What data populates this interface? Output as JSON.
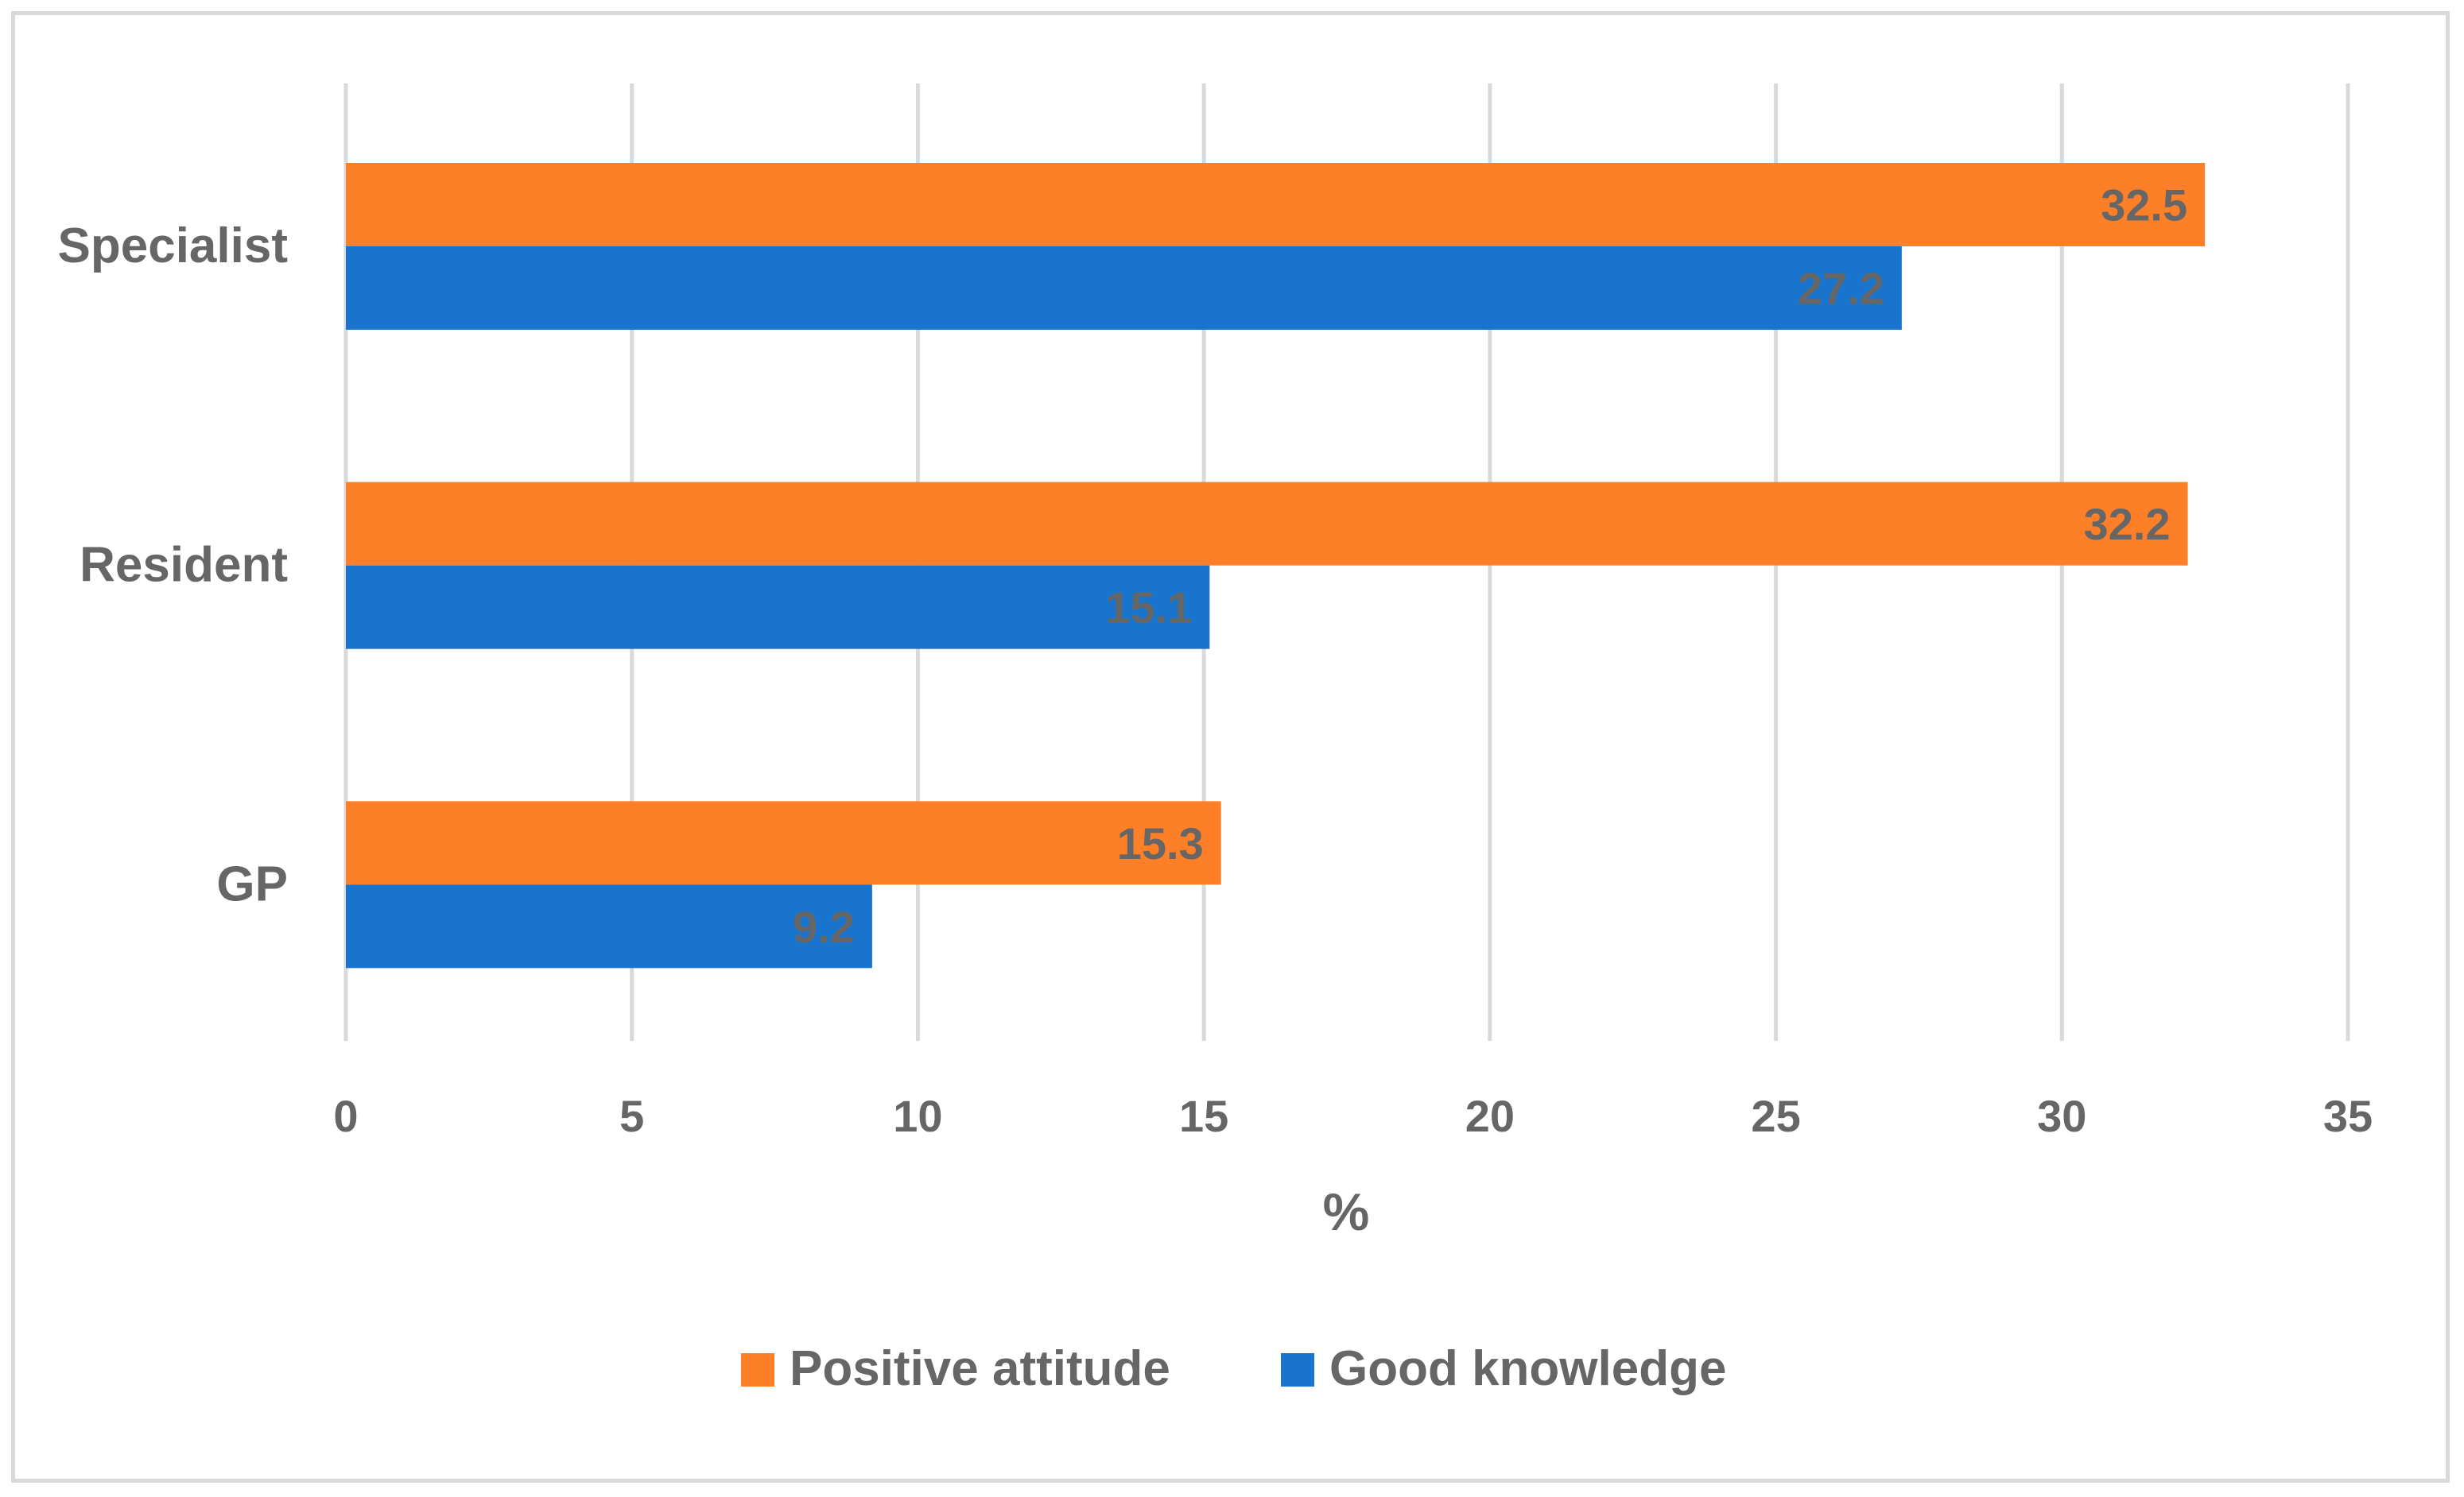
{
  "chart_data": {
    "type": "bar",
    "orientation": "horizontal",
    "categories": [
      "Specialist",
      "Resident",
      "GP"
    ],
    "series": [
      {
        "name": "Positive attitude",
        "color": "#fd7f28",
        "values": [
          32.5,
          32.2,
          15.3
        ]
      },
      {
        "name": "Good knowledge",
        "color": "#1874cc",
        "values": [
          27.2,
          15.1,
          9.2
        ]
      }
    ],
    "xlabel": "%",
    "ylabel": "",
    "xlim": [
      0,
      35
    ],
    "xticks": [
      0,
      5,
      10,
      15,
      20,
      25,
      30,
      35
    ],
    "grid": true,
    "legend_position": "bottom-center",
    "data_labels": true
  }
}
